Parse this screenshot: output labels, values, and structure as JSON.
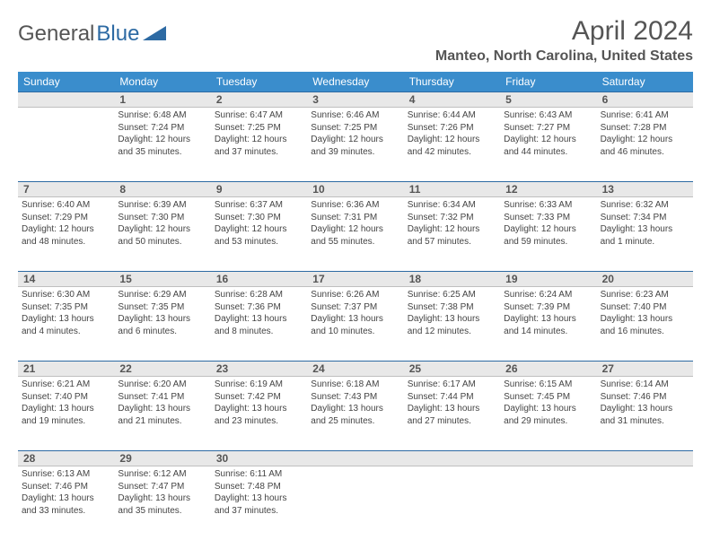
{
  "logo": {
    "text1": "General",
    "text2": "Blue"
  },
  "title": "April 2024",
  "subtitle": "Manteo, North Carolina, United States",
  "colors": {
    "header_bg": "#3a8dcc",
    "header_fg": "#ffffff",
    "daynum_bg": "#e8e8e8",
    "rule": "#2d6aa3",
    "text": "#444444"
  },
  "dayNames": [
    "Sunday",
    "Monday",
    "Tuesday",
    "Wednesday",
    "Thursday",
    "Friday",
    "Saturday"
  ],
  "weeks": [
    {
      "nums": [
        "",
        "1",
        "2",
        "3",
        "4",
        "5",
        "6"
      ],
      "days": [
        null,
        {
          "r": "6:48 AM",
          "s": "7:24 PM",
          "d1": "12 hours",
          "d2": "and 35 minutes."
        },
        {
          "r": "6:47 AM",
          "s": "7:25 PM",
          "d1": "12 hours",
          "d2": "and 37 minutes."
        },
        {
          "r": "6:46 AM",
          "s": "7:25 PM",
          "d1": "12 hours",
          "d2": "and 39 minutes."
        },
        {
          "r": "6:44 AM",
          "s": "7:26 PM",
          "d1": "12 hours",
          "d2": "and 42 minutes."
        },
        {
          "r": "6:43 AM",
          "s": "7:27 PM",
          "d1": "12 hours",
          "d2": "and 44 minutes."
        },
        {
          "r": "6:41 AM",
          "s": "7:28 PM",
          "d1": "12 hours",
          "d2": "and 46 minutes."
        }
      ]
    },
    {
      "nums": [
        "7",
        "8",
        "9",
        "10",
        "11",
        "12",
        "13"
      ],
      "days": [
        {
          "r": "6:40 AM",
          "s": "7:29 PM",
          "d1": "12 hours",
          "d2": "and 48 minutes."
        },
        {
          "r": "6:39 AM",
          "s": "7:30 PM",
          "d1": "12 hours",
          "d2": "and 50 minutes."
        },
        {
          "r": "6:37 AM",
          "s": "7:30 PM",
          "d1": "12 hours",
          "d2": "and 53 minutes."
        },
        {
          "r": "6:36 AM",
          "s": "7:31 PM",
          "d1": "12 hours",
          "d2": "and 55 minutes."
        },
        {
          "r": "6:34 AM",
          "s": "7:32 PM",
          "d1": "12 hours",
          "d2": "and 57 minutes."
        },
        {
          "r": "6:33 AM",
          "s": "7:33 PM",
          "d1": "12 hours",
          "d2": "and 59 minutes."
        },
        {
          "r": "6:32 AM",
          "s": "7:34 PM",
          "d1": "13 hours",
          "d2": "and 1 minute."
        }
      ]
    },
    {
      "nums": [
        "14",
        "15",
        "16",
        "17",
        "18",
        "19",
        "20"
      ],
      "days": [
        {
          "r": "6:30 AM",
          "s": "7:35 PM",
          "d1": "13 hours",
          "d2": "and 4 minutes."
        },
        {
          "r": "6:29 AM",
          "s": "7:35 PM",
          "d1": "13 hours",
          "d2": "and 6 minutes."
        },
        {
          "r": "6:28 AM",
          "s": "7:36 PM",
          "d1": "13 hours",
          "d2": "and 8 minutes."
        },
        {
          "r": "6:26 AM",
          "s": "7:37 PM",
          "d1": "13 hours",
          "d2": "and 10 minutes."
        },
        {
          "r": "6:25 AM",
          "s": "7:38 PM",
          "d1": "13 hours",
          "d2": "and 12 minutes."
        },
        {
          "r": "6:24 AM",
          "s": "7:39 PM",
          "d1": "13 hours",
          "d2": "and 14 minutes."
        },
        {
          "r": "6:23 AM",
          "s": "7:40 PM",
          "d1": "13 hours",
          "d2": "and 16 minutes."
        }
      ]
    },
    {
      "nums": [
        "21",
        "22",
        "23",
        "24",
        "25",
        "26",
        "27"
      ],
      "days": [
        {
          "r": "6:21 AM",
          "s": "7:40 PM",
          "d1": "13 hours",
          "d2": "and 19 minutes."
        },
        {
          "r": "6:20 AM",
          "s": "7:41 PM",
          "d1": "13 hours",
          "d2": "and 21 minutes."
        },
        {
          "r": "6:19 AM",
          "s": "7:42 PM",
          "d1": "13 hours",
          "d2": "and 23 minutes."
        },
        {
          "r": "6:18 AM",
          "s": "7:43 PM",
          "d1": "13 hours",
          "d2": "and 25 minutes."
        },
        {
          "r": "6:17 AM",
          "s": "7:44 PM",
          "d1": "13 hours",
          "d2": "and 27 minutes."
        },
        {
          "r": "6:15 AM",
          "s": "7:45 PM",
          "d1": "13 hours",
          "d2": "and 29 minutes."
        },
        {
          "r": "6:14 AM",
          "s": "7:46 PM",
          "d1": "13 hours",
          "d2": "and 31 minutes."
        }
      ]
    },
    {
      "nums": [
        "28",
        "29",
        "30",
        "",
        "",
        "",
        ""
      ],
      "days": [
        {
          "r": "6:13 AM",
          "s": "7:46 PM",
          "d1": "13 hours",
          "d2": "and 33 minutes."
        },
        {
          "r": "6:12 AM",
          "s": "7:47 PM",
          "d1": "13 hours",
          "d2": "and 35 minutes."
        },
        {
          "r": "6:11 AM",
          "s": "7:48 PM",
          "d1": "13 hours",
          "d2": "and 37 minutes."
        },
        null,
        null,
        null,
        null
      ]
    }
  ],
  "labels": {
    "sunrise": "Sunrise:",
    "sunset": "Sunset:",
    "daylight": "Daylight:"
  }
}
